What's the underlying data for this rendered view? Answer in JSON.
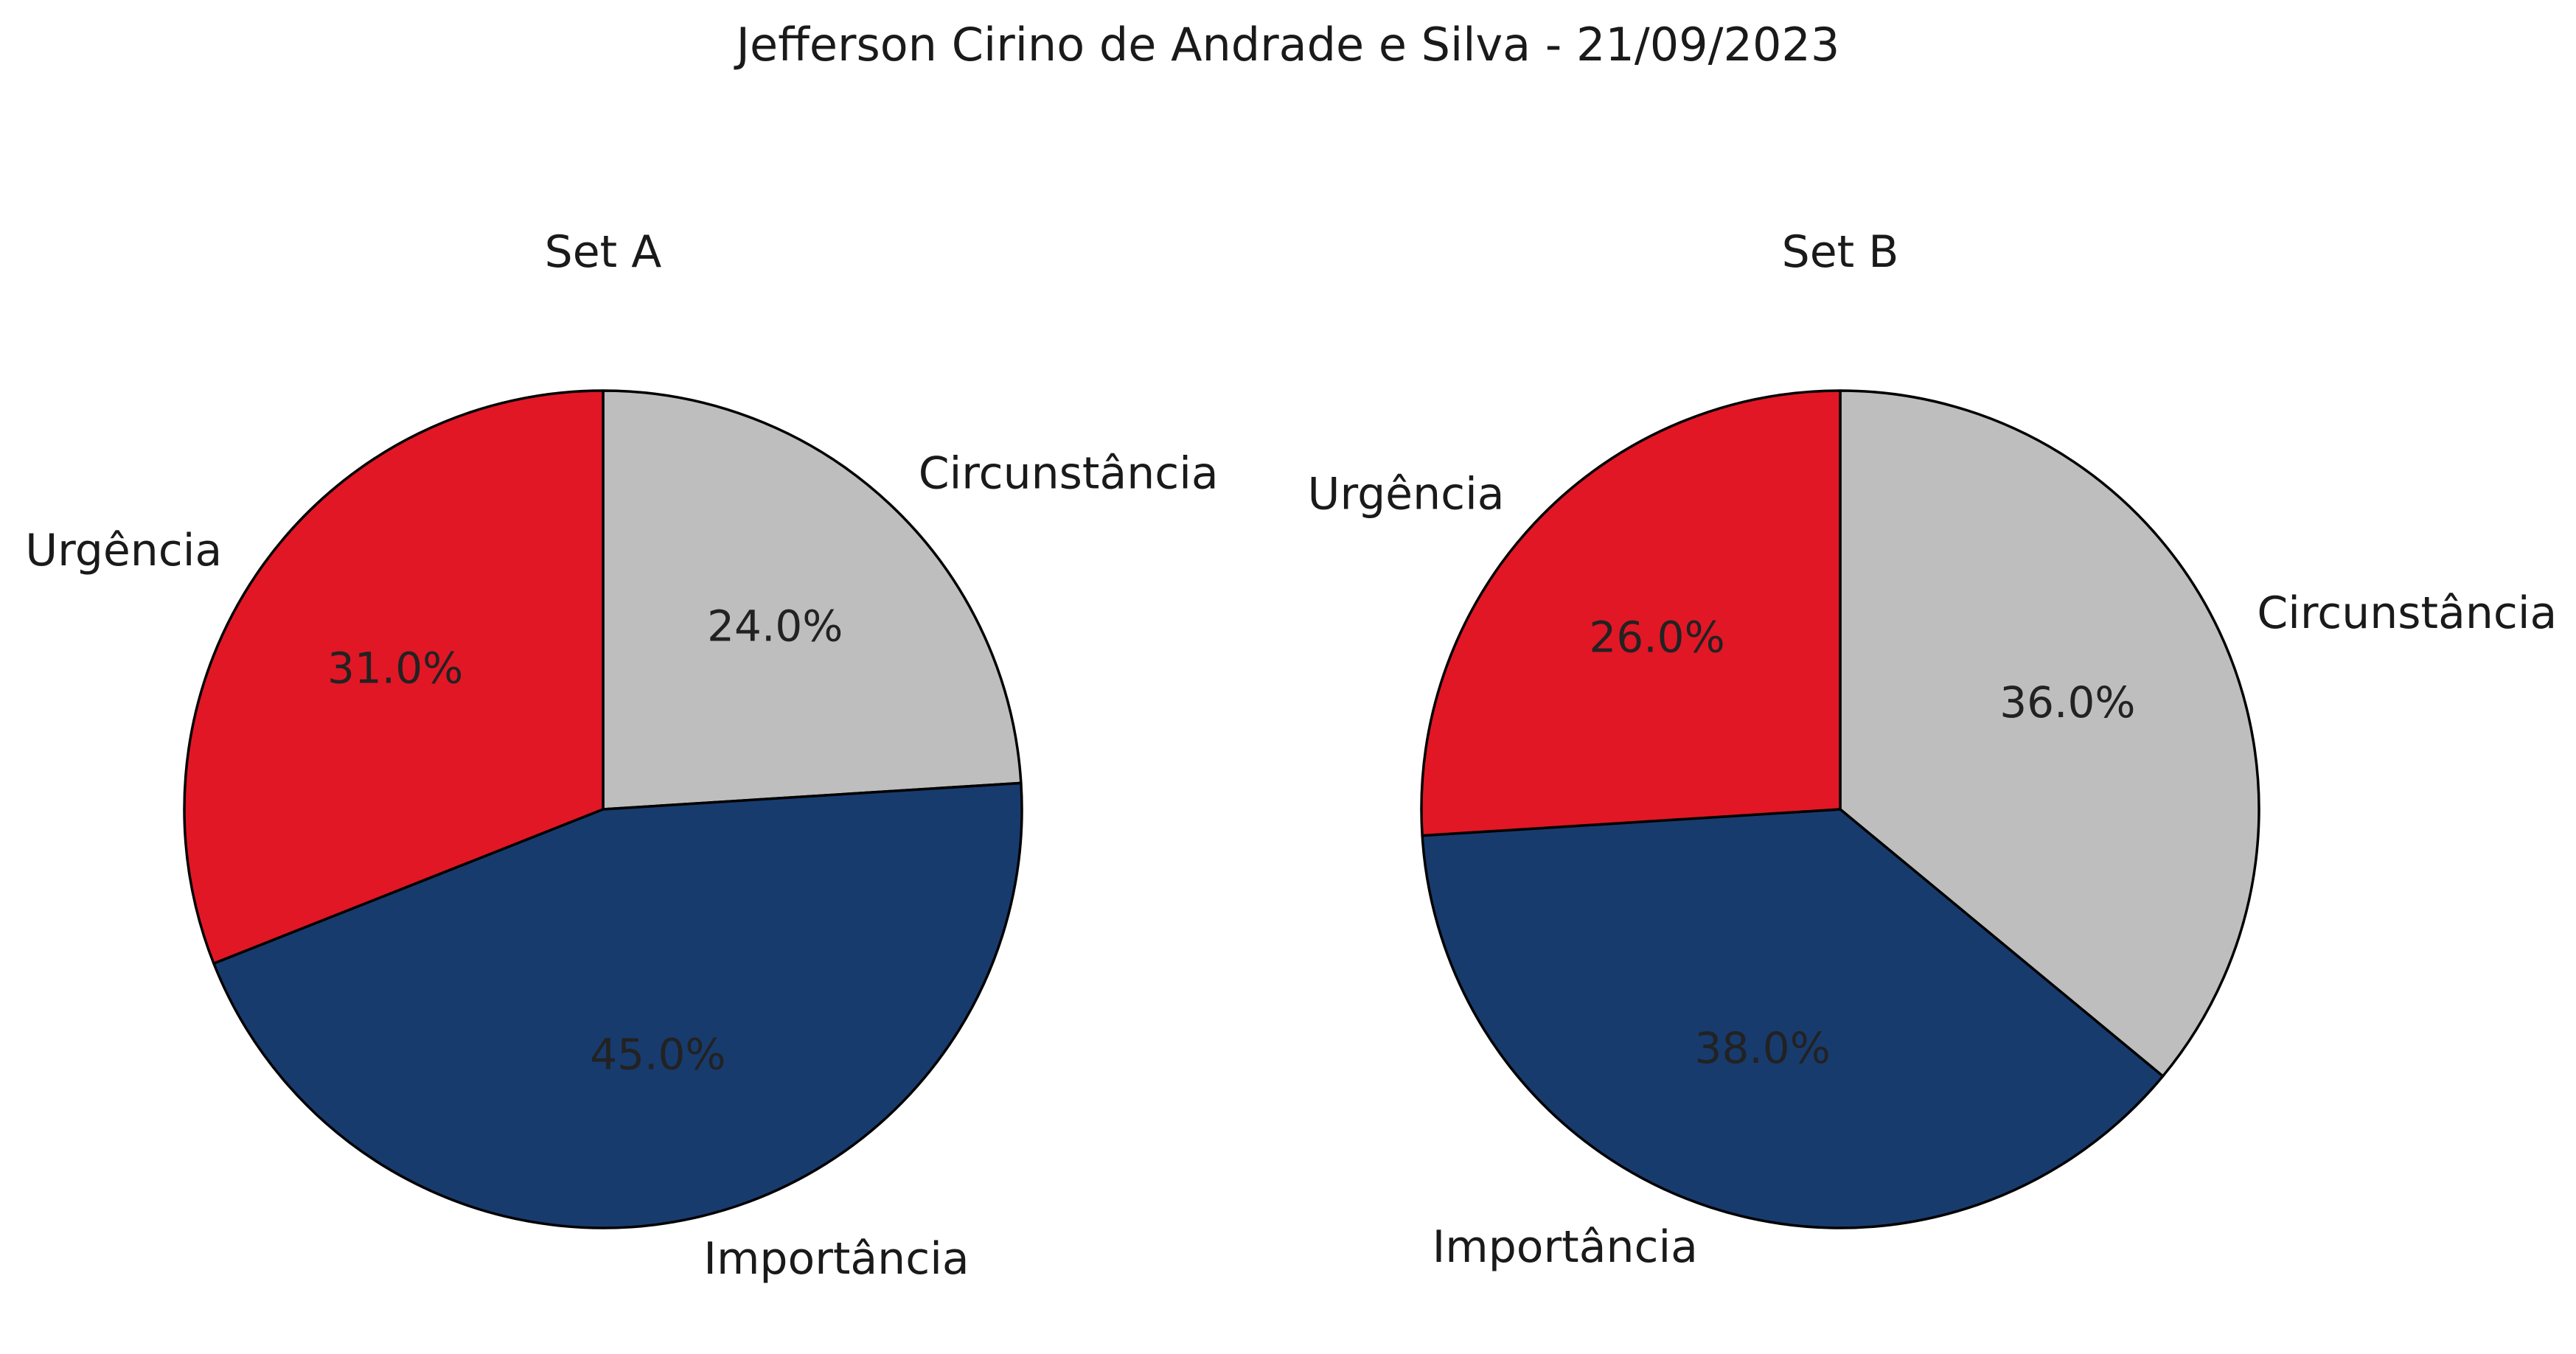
{
  "chart_data": [
    {
      "type": "pie",
      "title": "Set A",
      "categories": [
        "Circunstância",
        "Importância",
        "Urgência"
      ],
      "values": [
        24.0,
        45.0,
        31.0
      ],
      "value_labels": [
        "24.0%",
        "45.0%",
        "31.0%"
      ],
      "colors": [
        "#BDBEBD",
        "#183B6E",
        "#E11726"
      ],
      "start_angle_deg": 90,
      "direction": "clockwise"
    },
    {
      "type": "pie",
      "title": "Set B",
      "categories": [
        "Circunstância",
        "Importância",
        "Urgência"
      ],
      "values": [
        36.0,
        38.0,
        26.0
      ],
      "value_labels": [
        "36.0%",
        "38.0%",
        "26.0%"
      ],
      "colors": [
        "#BDBEBD",
        "#183B6E",
        "#E11726"
      ],
      "start_angle_deg": 90,
      "direction": "clockwise"
    }
  ],
  "suptitle": "Jefferson Cirino de Andrade e Silva - 21/09/2023"
}
